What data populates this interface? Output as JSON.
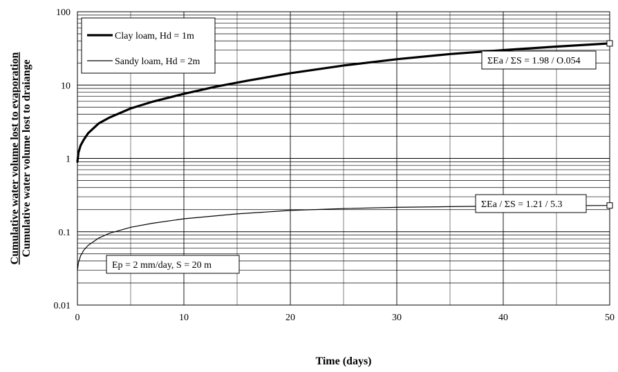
{
  "chart_data": {
    "type": "line",
    "xlabel": "Time (days)",
    "ylabel_numerator": "Cumulative water volume lost to evaporation",
    "ylabel_denominator": "Cumulative water volume lost to draiange",
    "xlim": [
      0,
      50
    ],
    "ylim": [
      0.01,
      100
    ],
    "yscale": "log",
    "grid": true,
    "x_ticks": [
      "0",
      "10",
      "20",
      "30",
      "40",
      "50"
    ],
    "y_ticks": [
      "0.01",
      "0.1",
      "1",
      "10",
      "100"
    ],
    "legend_position": "top-left",
    "series": [
      {
        "name": "Clay loam, Hd = 1m",
        "line": "thick",
        "x": [
          0,
          0.1,
          0.3,
          0.6,
          1,
          2,
          3,
          5,
          7,
          10,
          13,
          16,
          20,
          25,
          30,
          35,
          40,
          45,
          50
        ],
        "y": [
          0.9,
          1.2,
          1.5,
          1.8,
          2.2,
          3.0,
          3.6,
          4.8,
          5.9,
          7.6,
          9.5,
          11.5,
          14.5,
          18.5,
          22.5,
          26.5,
          30.0,
          33.5,
          37.0
        ]
      },
      {
        "name": "Sandy loam, Hd = 2m",
        "line": "thin",
        "x": [
          0,
          0.1,
          0.3,
          0.6,
          1,
          2,
          3,
          5,
          7,
          10,
          15,
          20,
          25,
          30,
          35,
          40,
          45,
          50
        ],
        "y": [
          0.03,
          0.038,
          0.047,
          0.056,
          0.065,
          0.082,
          0.095,
          0.115,
          0.13,
          0.15,
          0.175,
          0.195,
          0.207,
          0.215,
          0.22,
          0.224,
          0.226,
          0.228
        ]
      }
    ],
    "annotations": [
      {
        "text": "ΣEa / ΣS = 1.98  / O.054",
        "series": 0
      },
      {
        "text": "ΣEa / ΣS = 1.21  / 5.3",
        "series": 1
      },
      {
        "text": "Ep = 2 mm/day, S = 20 m"
      }
    ]
  }
}
